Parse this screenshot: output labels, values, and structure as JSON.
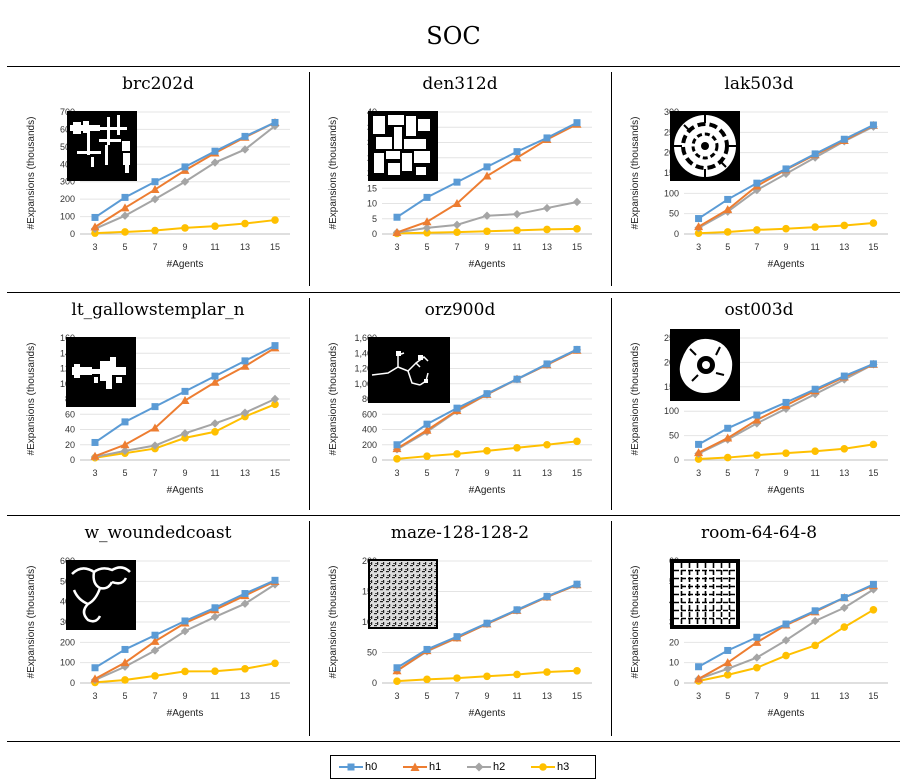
{
  "figure": {
    "title": "SOC",
    "colors": {
      "h0": "#5b9bd5",
      "h1": "#ed7d31",
      "h2": "#a5a5a5",
      "h3": "#ffc000"
    },
    "legend": [
      "h0",
      "h1",
      "h2",
      "h3"
    ]
  },
  "chart_data": [
    {
      "type": "line",
      "title": "brc202d",
      "xlabel": "#Agents",
      "ylabel": "#Expansions (thousands)",
      "x": [
        3,
        5,
        7,
        9,
        11,
        13,
        15
      ],
      "ylim": [
        0,
        700
      ],
      "yticks": [
        0,
        100,
        200,
        300,
        400,
        500,
        600,
        700
      ],
      "ytick_labels": [
        "0",
        "100",
        "200",
        "300",
        "400",
        "500",
        "600",
        "700"
      ],
      "thumbnail": "map-brc202d",
      "series": [
        {
          "name": "h0",
          "values": [
            95,
            210,
            300,
            385,
            475,
            560,
            640
          ]
        },
        {
          "name": "h1",
          "values": [
            40,
            150,
            255,
            365,
            465,
            555,
            640
          ]
        },
        {
          "name": "h2",
          "values": [
            30,
            105,
            200,
            300,
            410,
            485,
            620
          ]
        },
        {
          "name": "h3",
          "values": [
            5,
            12,
            20,
            35,
            45,
            60,
            80
          ]
        }
      ]
    },
    {
      "type": "line",
      "title": "den312d",
      "xlabel": "#Agents",
      "ylabel": "#Expansions (thousands)",
      "x": [
        3,
        5,
        7,
        9,
        11,
        13,
        15
      ],
      "ylim": [
        0,
        40
      ],
      "yticks": [
        0,
        5,
        10,
        15,
        20,
        25,
        30,
        35,
        40
      ],
      "ytick_labels": [
        "0",
        "5",
        "10",
        "15",
        "20",
        "25",
        "30",
        "35",
        "40"
      ],
      "thumbnail": "map-den312d",
      "series": [
        {
          "name": "h0",
          "values": [
            5.5,
            12,
            17,
            22,
            27,
            31.5,
            36.5
          ]
        },
        {
          "name": "h1",
          "values": [
            0.5,
            4,
            10,
            19,
            25,
            31,
            36
          ]
        },
        {
          "name": "h2",
          "values": [
            0.5,
            2,
            3,
            6,
            6.5,
            8.5,
            10.5
          ]
        },
        {
          "name": "h3",
          "values": [
            0.2,
            0.4,
            0.6,
            0.9,
            1.2,
            1.5,
            1.7
          ]
        }
      ]
    },
    {
      "type": "line",
      "title": "lak503d",
      "xlabel": "#Agents",
      "ylabel": "#Expansions (thousands)",
      "x": [
        3,
        5,
        7,
        9,
        11,
        13,
        15
      ],
      "ylim": [
        0,
        300
      ],
      "yticks": [
        0,
        50,
        100,
        150,
        200,
        250,
        300
      ],
      "ytick_labels": [
        "0",
        "50",
        "100",
        "150",
        "200",
        "250",
        "300"
      ],
      "thumbnail": "map-lak503d",
      "series": [
        {
          "name": "h0",
          "values": [
            38,
            85,
            125,
            160,
            197,
            233,
            268
          ]
        },
        {
          "name": "h1",
          "values": [
            18,
            60,
            118,
            158,
            195,
            230,
            267
          ]
        },
        {
          "name": "h2",
          "values": [
            15,
            55,
            108,
            148,
            188,
            228,
            264
          ]
        },
        {
          "name": "h3",
          "values": [
            2,
            5,
            10,
            13,
            17,
            21,
            27
          ]
        }
      ]
    },
    {
      "type": "line",
      "title": "lt_gallowstemplar_n",
      "xlabel": "#Agents",
      "ylabel": "#Expansions (thousands)",
      "x": [
        3,
        5,
        7,
        9,
        11,
        13,
        15
      ],
      "ylim": [
        0,
        160
      ],
      "yticks": [
        0,
        20,
        40,
        60,
        80,
        100,
        120,
        140,
        160
      ],
      "ytick_labels": [
        "0",
        "20",
        "40",
        "60",
        "80",
        "100",
        "120",
        "140",
        "160"
      ],
      "thumbnail": "map-lt-gallowstemplar-n",
      "series": [
        {
          "name": "h0",
          "values": [
            23,
            50,
            70,
            90,
            110,
            130,
            150
          ]
        },
        {
          "name": "h1",
          "values": [
            5,
            20,
            42,
            78,
            102,
            123,
            147
          ]
        },
        {
          "name": "h2",
          "values": [
            4,
            12,
            19,
            35,
            48,
            62,
            80
          ]
        },
        {
          "name": "h3",
          "values": [
            3,
            9,
            15,
            29,
            37,
            57,
            73
          ]
        }
      ]
    },
    {
      "type": "line",
      "title": "orz900d",
      "xlabel": "#Agents",
      "ylabel": "#Expansions (thousands)",
      "x": [
        3,
        5,
        7,
        9,
        11,
        13,
        15
      ],
      "ylim": [
        0,
        1600
      ],
      "yticks": [
        0,
        200,
        400,
        600,
        800,
        1000,
        1200,
        1400,
        1600
      ],
      "ytick_labels": [
        "0",
        "200",
        "400",
        "600",
        "800",
        "1,000",
        "1,200",
        "1,400",
        "1,600"
      ],
      "thumbnail": "map-orz900d",
      "series": [
        {
          "name": "h0",
          "values": [
            200,
            470,
            680,
            870,
            1060,
            1260,
            1450
          ]
        },
        {
          "name": "h1",
          "values": [
            150,
            390,
            650,
            860,
            1060,
            1250,
            1440
          ]
        },
        {
          "name": "h2",
          "values": [
            140,
            370,
            640,
            860,
            1060,
            1250,
            1445
          ]
        },
        {
          "name": "h3",
          "values": [
            15,
            50,
            80,
            120,
            160,
            200,
            245
          ]
        }
      ]
    },
    {
      "type": "line",
      "title": "ost003d",
      "xlabel": "#Agents",
      "ylabel": "#Expansions (thousands)",
      "x": [
        3,
        5,
        7,
        9,
        11,
        13,
        15
      ],
      "ylim": [
        0,
        250
      ],
      "yticks": [
        0,
        50,
        100,
        150,
        200,
        250
      ],
      "ytick_labels": [
        "0",
        "50",
        "100",
        "150",
        "200",
        "250"
      ],
      "thumbnail": "map-ost003d",
      "series": [
        {
          "name": "h0",
          "values": [
            32,
            65,
            92,
            118,
            145,
            172,
            197
          ]
        },
        {
          "name": "h1",
          "values": [
            15,
            45,
            82,
            112,
            142,
            170,
            196
          ]
        },
        {
          "name": "h2",
          "values": [
            13,
            42,
            75,
            105,
            135,
            165,
            196
          ]
        },
        {
          "name": "h3",
          "values": [
            2,
            5,
            10,
            14,
            18,
            23,
            32
          ]
        }
      ]
    },
    {
      "type": "line",
      "title": "w_woundedcoast",
      "xlabel": "#Agents",
      "ylabel": "#Expansions (thousands)",
      "x": [
        3,
        5,
        7,
        9,
        11,
        13,
        15
      ],
      "ylim": [
        0,
        600
      ],
      "yticks": [
        0,
        100,
        200,
        300,
        400,
        500,
        600
      ],
      "ytick_labels": [
        "0",
        "100",
        "200",
        "300",
        "400",
        "500",
        "600"
      ],
      "thumbnail": "map-w-woundedcoast",
      "series": [
        {
          "name": "h0",
          "values": [
            75,
            165,
            235,
            305,
            370,
            440,
            505
          ]
        },
        {
          "name": "h1",
          "values": [
            20,
            100,
            205,
            295,
            360,
            430,
            500
          ]
        },
        {
          "name": "h2",
          "values": [
            15,
            80,
            160,
            255,
            325,
            390,
            485
          ]
        },
        {
          "name": "h3",
          "values": [
            3,
            15,
            35,
            57,
            58,
            70,
            97
          ]
        }
      ]
    },
    {
      "type": "line",
      "title": "maze-128-128-2",
      "xlabel": "#Agents",
      "ylabel": "#Expansions (thousands)",
      "x": [
        3,
        5,
        7,
        9,
        11,
        13,
        15
      ],
      "ylim": [
        0,
        200
      ],
      "yticks": [
        0,
        50,
        100,
        150,
        200
      ],
      "ytick_labels": [
        "0",
        "50",
        "100",
        "150",
        "200"
      ],
      "thumbnail": "map-maze-128-128-2",
      "series": [
        {
          "name": "h0",
          "values": [
            25,
            55,
            76,
            98,
            120,
            142,
            162
          ]
        },
        {
          "name": "h1",
          "values": [
            20,
            53,
            74,
            97,
            119,
            141,
            161
          ]
        },
        {
          "name": "h2",
          "values": [
            20,
            52,
            74,
            97,
            119,
            141,
            161
          ]
        },
        {
          "name": "h3",
          "values": [
            3,
            6,
            8,
            11,
            14,
            18,
            20
          ]
        }
      ]
    },
    {
      "type": "line",
      "title": "room-64-64-8",
      "xlabel": "#Agents",
      "ylabel": "#Expansions (thousands)",
      "x": [
        3,
        5,
        7,
        9,
        11,
        13,
        15
      ],
      "ylim": [
        0,
        60
      ],
      "yticks": [
        0,
        10,
        20,
        30,
        40,
        50,
        60
      ],
      "ytick_labels": [
        "0",
        "10",
        "20",
        "30",
        "40",
        "50",
        "60"
      ],
      "thumbnail": "map-room-64-64-8",
      "series": [
        {
          "name": "h0",
          "values": [
            8,
            16,
            22.5,
            29,
            35.5,
            42,
            48.5
          ]
        },
        {
          "name": "h1",
          "values": [
            2,
            10,
            20,
            28.5,
            35,
            42,
            48
          ]
        },
        {
          "name": "h2",
          "values": [
            2,
            7,
            12.5,
            21,
            30.5,
            37,
            46
          ]
        },
        {
          "name": "h3",
          "values": [
            1,
            4,
            7.5,
            13.5,
            18.5,
            27.5,
            36
          ]
        }
      ]
    }
  ]
}
